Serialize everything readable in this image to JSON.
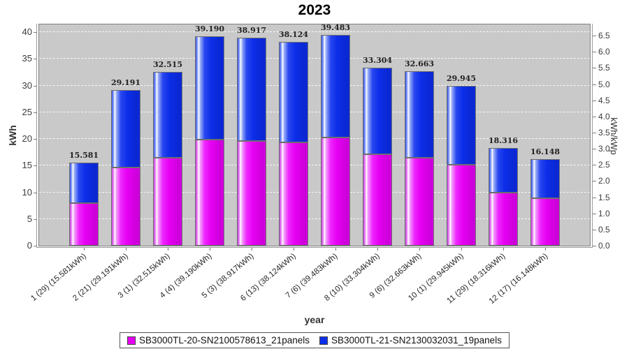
{
  "chart_data": {
    "type": "bar",
    "stacked": true,
    "title": "2023",
    "xlabel": "year",
    "ylabel_left": "kWh",
    "ylabel_right": "kWh/kWp",
    "ylim_left": [
      0,
      41.4
    ],
    "ylim_right": [
      0,
      6.85
    ],
    "left_axis_ticks": [
      0,
      5,
      10,
      15,
      20,
      25,
      30,
      35,
      40
    ],
    "right_axis_ticks": [
      0.0,
      0.5,
      1.0,
      1.5,
      2.0,
      2.5,
      3.0,
      3.5,
      4.0,
      4.5,
      5.0,
      5.5,
      6.0,
      6.5
    ],
    "grid": "horizontal-dashed-white",
    "plot_background": "#c9c9c9",
    "legend_position": "bottom",
    "categories": [
      "1 (29)  (15.581kWh)",
      "2 (21)  (29.191kWh)",
      "3 (1)  (32.515kWh)",
      "4 (4)  (39.190kWh)",
      "5 (3)  (38.917kWh)",
      "6 (13)  (38.124kWh)",
      "7 (6)  (39.483kWh)",
      "8 (10)  (33.304kWh)",
      "9 (6)  (32.663kWh)",
      "10 (1)  (29.945kWh)",
      "11 (29)  (18.316kWh)",
      "12 (17)  (16.148kWh)"
    ],
    "totals": [
      15.581,
      29.191,
      32.515,
      39.19,
      38.917,
      38.124,
      39.483,
      33.304,
      32.663,
      29.945,
      18.316,
      16.148
    ],
    "bar_value_labels": [
      "15.581",
      "29.191",
      "32.515",
      "39.190",
      "38.917",
      "38.124",
      "39.483",
      "33.304",
      "32.663",
      "29.945",
      "18.316",
      "16.148"
    ],
    "series": [
      {
        "name": "SB3000TL-20-SN2100578613_21panels",
        "color": "#e600f2",
        "values": [
          8.0,
          14.7,
          16.5,
          19.9,
          19.6,
          19.4,
          20.2,
          17.1,
          16.5,
          15.2,
          10.0,
          8.9
        ]
      },
      {
        "name": "SB3000TL-21-SN2130032031_19panels",
        "color": "#0d2ee8",
        "values": [
          7.581,
          14.491,
          16.015,
          19.29,
          19.317,
          18.724,
          19.283,
          16.204,
          16.163,
          14.745,
          8.316,
          7.248
        ]
      }
    ]
  }
}
